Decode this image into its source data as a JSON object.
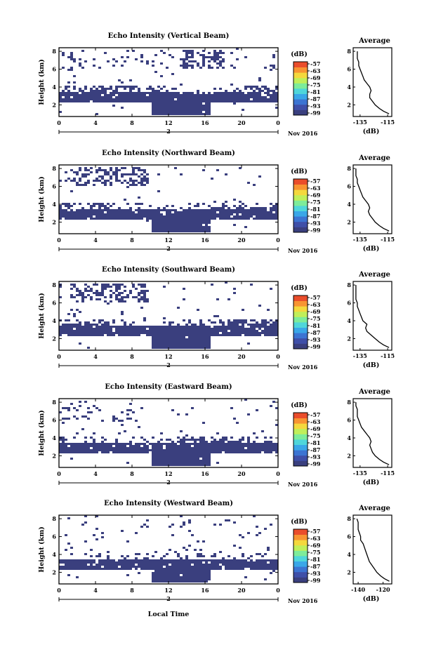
{
  "colors": {
    "echo": "#3a3f7e",
    "scale": [
      "#3a3f7e",
      "#3f4fa8",
      "#3c74d2",
      "#3aa7e8",
      "#4fd6da",
      "#7dec9a",
      "#c0ef5a",
      "#f4d83d",
      "#f89432",
      "#ea4d2b"
    ]
  },
  "common": {
    "height_ticks": [
      "2",
      "4",
      "6",
      "8"
    ],
    "height_label": "Height (km)",
    "time_ticks": [
      "0",
      "4",
      "8",
      "12",
      "16",
      "20",
      "0"
    ],
    "day_label": "2",
    "month_label": "Nov 2016",
    "colorbar_unit": "(dB)",
    "colorbar_ticks": [
      "-57",
      "-63",
      "-69",
      "-75",
      "-81",
      "-87",
      "-93",
      "-99"
    ],
    "avg_title": "Average",
    "avg_xlabel": "(dB)",
    "avg_y_ticks": [
      "2",
      "4",
      "6",
      "8"
    ],
    "xlabel": "Local Time"
  },
  "chart_data": [
    {
      "type": "heatmap",
      "title": "Echo Intensity (Vertical Beam)",
      "avg_x_ticks": [
        "-135",
        "-115"
      ],
      "avg_xlim": [
        -140,
        -112
      ],
      "avg_profile": [
        [
          -114,
          1.0
        ],
        [
          -118,
          1.3
        ],
        [
          -121,
          1.6
        ],
        [
          -124,
          2.0
        ],
        [
          -126,
          2.4
        ],
        [
          -128,
          2.8
        ],
        [
          -128,
          3.2
        ],
        [
          -127,
          3.6
        ],
        [
          -128,
          4.0
        ],
        [
          -130,
          4.4
        ],
        [
          -132,
          4.8
        ],
        [
          -133,
          5.2
        ],
        [
          -134,
          5.6
        ],
        [
          -135,
          6.0
        ],
        [
          -136,
          6.4
        ],
        [
          -136,
          6.8
        ],
        [
          -137,
          7.2
        ],
        [
          -137,
          7.6
        ],
        [
          -137,
          8.0
        ]
      ]
    },
    {
      "type": "heatmap",
      "title": "Echo Intensity (Northward Beam)",
      "avg_x_ticks": [
        "-135",
        "-115"
      ],
      "avg_xlim": [
        -140,
        -112
      ],
      "avg_profile": [
        [
          -114,
          1.0
        ],
        [
          -118,
          1.3
        ],
        [
          -121,
          1.6
        ],
        [
          -124,
          2.0
        ],
        [
          -126,
          2.4
        ],
        [
          -128,
          2.8
        ],
        [
          -129,
          3.2
        ],
        [
          -128,
          3.6
        ],
        [
          -129,
          4.0
        ],
        [
          -131,
          4.4
        ],
        [
          -133,
          4.8
        ],
        [
          -134,
          5.2
        ],
        [
          -135,
          5.6
        ],
        [
          -136,
          6.0
        ],
        [
          -137,
          6.4
        ],
        [
          -137,
          6.8
        ],
        [
          -138,
          7.2
        ],
        [
          -138,
          7.6
        ],
        [
          -138,
          8.0
        ]
      ]
    },
    {
      "type": "heatmap",
      "title": "Echo Intensity (Southward Beam)",
      "avg_x_ticks": [
        "-135",
        "-115"
      ],
      "avg_xlim": [
        -140,
        -112
      ],
      "avg_profile": [
        [
          -114,
          1.0
        ],
        [
          -118,
          1.3
        ],
        [
          -121,
          1.6
        ],
        [
          -124,
          2.0
        ],
        [
          -127,
          2.4
        ],
        [
          -130,
          2.8
        ],
        [
          -131,
          3.2
        ],
        [
          -130,
          3.6
        ],
        [
          -133,
          4.0
        ],
        [
          -134,
          4.4
        ],
        [
          -135,
          4.8
        ],
        [
          -136,
          5.2
        ],
        [
          -137,
          5.6
        ],
        [
          -137,
          6.0
        ],
        [
          -138,
          6.4
        ],
        [
          -138,
          6.8
        ],
        [
          -138,
          7.2
        ],
        [
          -138,
          7.6
        ],
        [
          -138,
          8.0
        ]
      ]
    },
    {
      "type": "heatmap",
      "title": "Echo Intensity (Eastward Beam)",
      "avg_x_ticks": [
        "-135",
        "-115"
      ],
      "avg_xlim": [
        -140,
        -112
      ],
      "avg_profile": [
        [
          -114,
          1.0
        ],
        [
          -118,
          1.3
        ],
        [
          -121,
          1.6
        ],
        [
          -124,
          2.0
        ],
        [
          -126,
          2.4
        ],
        [
          -127,
          2.8
        ],
        [
          -128,
          3.2
        ],
        [
          -127,
          3.6
        ],
        [
          -128,
          4.0
        ],
        [
          -130,
          4.4
        ],
        [
          -132,
          4.8
        ],
        [
          -134,
          5.2
        ],
        [
          -135,
          5.6
        ],
        [
          -136,
          6.0
        ],
        [
          -137,
          6.4
        ],
        [
          -137,
          6.8
        ],
        [
          -137,
          7.2
        ],
        [
          -138,
          7.6
        ],
        [
          -138,
          8.0
        ]
      ]
    },
    {
      "type": "heatmap",
      "title": "Echo Intensity (Westward Beam)",
      "avg_x_ticks": [
        "-140",
        "-120"
      ],
      "avg_xlim": [
        -144,
        -113
      ],
      "avg_profile": [
        [
          -115,
          1.0
        ],
        [
          -119,
          1.3
        ],
        [
          -122,
          1.6
        ],
        [
          -125,
          2.0
        ],
        [
          -127,
          2.4
        ],
        [
          -129,
          2.8
        ],
        [
          -131,
          3.2
        ],
        [
          -132,
          3.6
        ],
        [
          -133,
          4.0
        ],
        [
          -134,
          4.4
        ],
        [
          -135,
          4.8
        ],
        [
          -136,
          5.2
        ],
        [
          -138,
          5.6
        ],
        [
          -138,
          6.0
        ],
        [
          -139,
          6.4
        ],
        [
          -140,
          6.8
        ],
        [
          -140,
          7.2
        ],
        [
          -140,
          7.6
        ],
        [
          -141,
          8.0
        ]
      ]
    }
  ]
}
